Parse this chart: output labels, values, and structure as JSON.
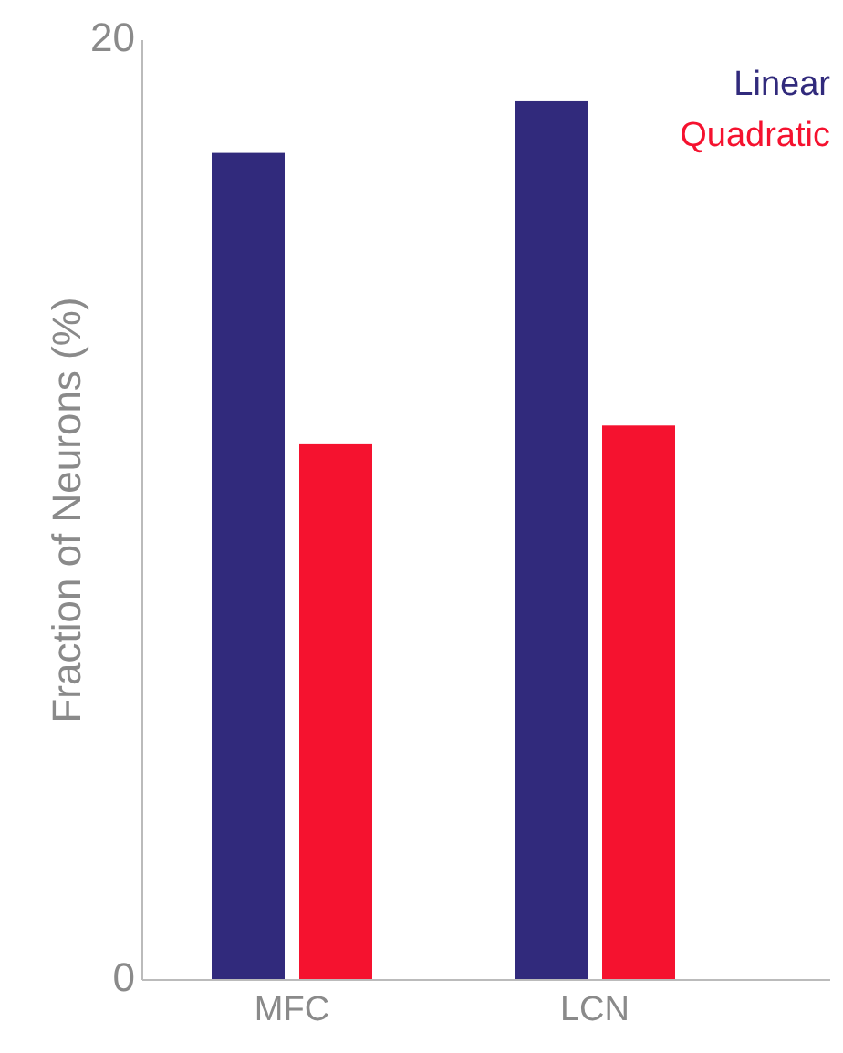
{
  "chart_data": {
    "type": "bar",
    "ylabel": "Fraction of Neurons (%)",
    "categories": [
      "MFC",
      "LCN"
    ],
    "series": [
      {
        "name": "Linear",
        "color": "#312a7c",
        "values": [
          17.6,
          18.7
        ]
      },
      {
        "name": "Quadratic",
        "color": "#f5122f",
        "values": [
          11.4,
          11.8
        ]
      }
    ],
    "ylim": [
      0,
      20
    ],
    "yticks": [
      0,
      20
    ],
    "grid": false,
    "legend": "top right"
  }
}
